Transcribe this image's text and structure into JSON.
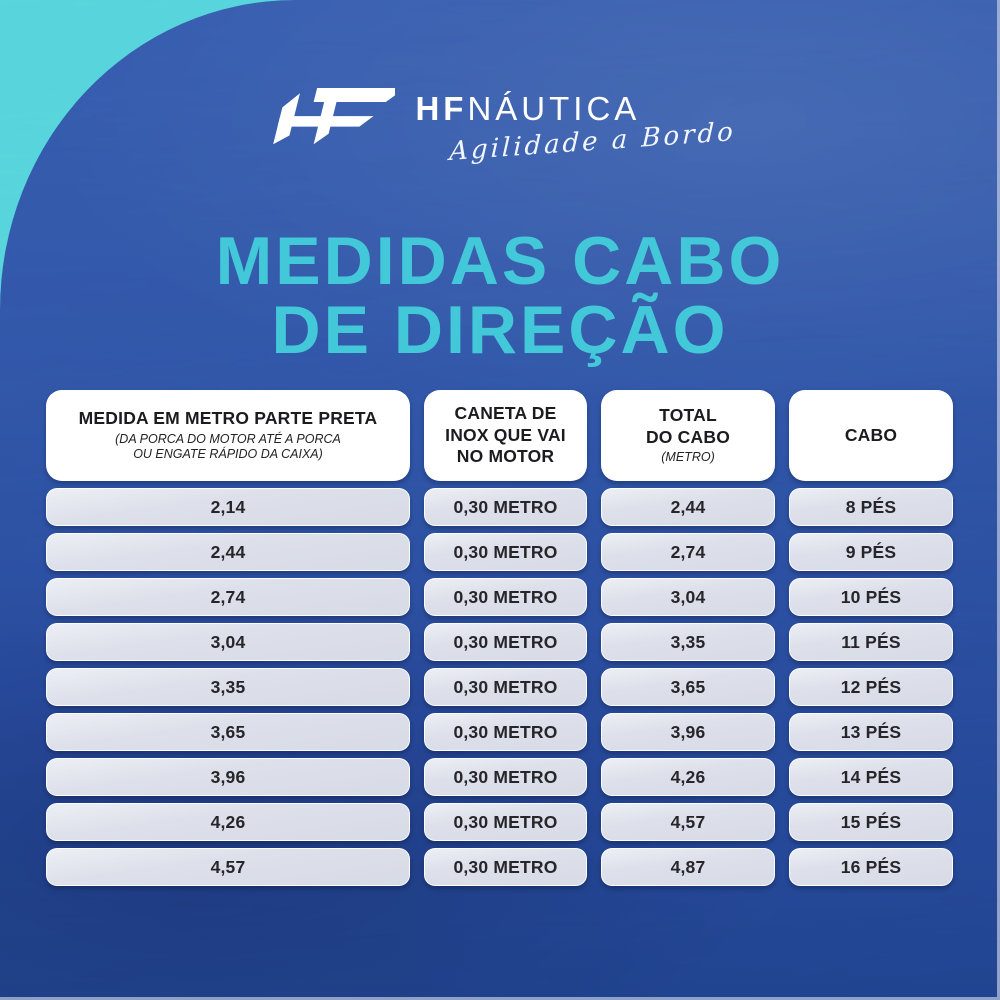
{
  "brand": {
    "monogram_icon": "HF",
    "name_bold": "HF",
    "name_light": "NÁUTICA",
    "tagline": "Agilidade a Bordo"
  },
  "title": {
    "line1": "MEDIDAS CABO",
    "line2": "DE DIREÇÃO"
  },
  "table": {
    "headers": [
      {
        "title": "MEDIDA EM METRO PARTE PRETA",
        "subtitle": "(DA PORCA DO MOTOR ATÉ A PORCA\nOU ENGATE RÁPIDO DA CAIXA)"
      },
      {
        "title": "CANETA DE\nINOX QUE VAI\nNO MOTOR",
        "subtitle": ""
      },
      {
        "title": "TOTAL\nDO CABO",
        "subtitle": "(METRO)"
      },
      {
        "title": "CABO",
        "subtitle": ""
      }
    ],
    "rows": [
      [
        "2,14",
        "0,30 METRO",
        "2,44",
        "8 PÉS"
      ],
      [
        "2,44",
        "0,30 METRO",
        "2,74",
        "9 PÉS"
      ],
      [
        "2,74",
        "0,30 METRO",
        "3,04",
        "10 PÉS"
      ],
      [
        "3,04",
        "0,30 METRO",
        "3,35",
        "11 PÉS"
      ],
      [
        "3,35",
        "0,30 METRO",
        "3,65",
        "12 PÉS"
      ],
      [
        "3,65",
        "0,30 METRO",
        "3,96",
        "13 PÉS"
      ],
      [
        "3,96",
        "0,30 METRO",
        "4,26",
        "14 PÉS"
      ],
      [
        "4,26",
        "0,30 METRO",
        "4,57",
        "15 PÉS"
      ],
      [
        "4,57",
        "0,30 METRO",
        "4,87",
        "16 PÉS"
      ]
    ]
  },
  "colors": {
    "accent_teal": "#42c8d8",
    "corner_teal": "#4bccd5",
    "background_blue_top": "#2e4f9f",
    "background_blue_bottom": "#1c3a7b",
    "cell_gray": "#dde1ea",
    "header_white": "#ffffff",
    "text_dark": "#26262a"
  }
}
